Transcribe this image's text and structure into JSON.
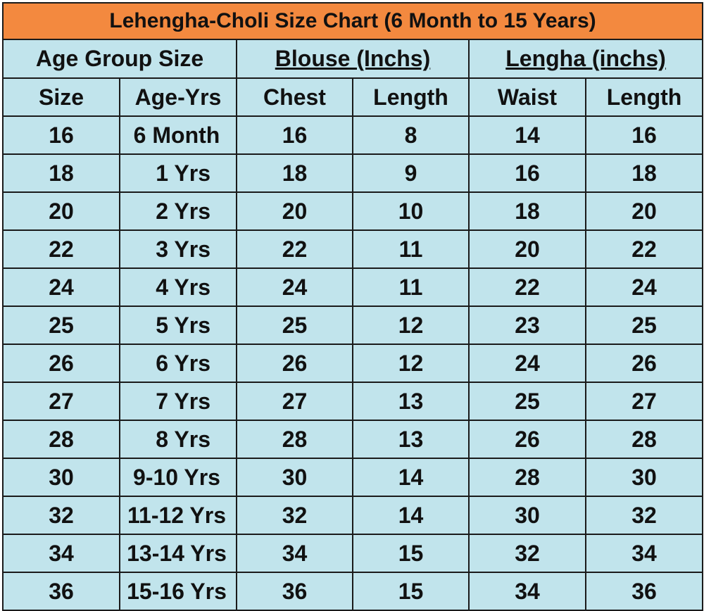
{
  "title": "Lehengha-Choli Size Chart  (6 Month to 15 Years)",
  "groups": {
    "age_group": "Age Group Size",
    "blouse": "Blouse (Inchs)",
    "lengha": "Lengha (inchs)"
  },
  "columns": {
    "size": "Size",
    "age": "Age-Yrs",
    "chest": "Chest",
    "blouse_length": "Length",
    "waist": "Waist",
    "lengha_length": "Length"
  },
  "rows": [
    {
      "size": "16",
      "age": "6 Month",
      "chest": "16",
      "blouse_length": "8",
      "waist": "14",
      "lengha_length": "16"
    },
    {
      "size": "18",
      "age": "1 Yrs",
      "chest": "18",
      "blouse_length": "9",
      "waist": "16",
      "lengha_length": "18"
    },
    {
      "size": "20",
      "age": "2 Yrs",
      "chest": "20",
      "blouse_length": "10",
      "waist": "18",
      "lengha_length": "20"
    },
    {
      "size": "22",
      "age": "3 Yrs",
      "chest": "22",
      "blouse_length": "11",
      "waist": "20",
      "lengha_length": "22"
    },
    {
      "size": "24",
      "age": "4 Yrs",
      "chest": "24",
      "blouse_length": "11",
      "waist": "22",
      "lengha_length": "24"
    },
    {
      "size": "25",
      "age": "5 Yrs",
      "chest": "25",
      "blouse_length": "12",
      "waist": "23",
      "lengha_length": "25"
    },
    {
      "size": "26",
      "age": "6 Yrs",
      "chest": "26",
      "blouse_length": "12",
      "waist": "24",
      "lengha_length": "26"
    },
    {
      "size": "27",
      "age": "7 Yrs",
      "chest": "27",
      "blouse_length": "13",
      "waist": "25",
      "lengha_length": "27"
    },
    {
      "size": "28",
      "age": "8 Yrs",
      "chest": "28",
      "blouse_length": "13",
      "waist": "26",
      "lengha_length": "28"
    },
    {
      "size": "30",
      "age": "9-10 Yrs",
      "chest": "30",
      "blouse_length": "14",
      "waist": "28",
      "lengha_length": "30"
    },
    {
      "size": "32",
      "age": "11-12 Yrs",
      "chest": "32",
      "blouse_length": "14",
      "waist": "30",
      "lengha_length": "32"
    },
    {
      "size": "34",
      "age": "13-14 Yrs",
      "chest": "34",
      "blouse_length": "15",
      "waist": "32",
      "lengha_length": "34"
    },
    {
      "size": "36",
      "age": "15-16 Yrs",
      "chest": "36",
      "blouse_length": "15",
      "waist": "34",
      "lengha_length": "36"
    }
  ],
  "colors": {
    "title_background": "#f3893f",
    "cell_background": "#c1e4ec",
    "border": "#1a1a1a"
  }
}
